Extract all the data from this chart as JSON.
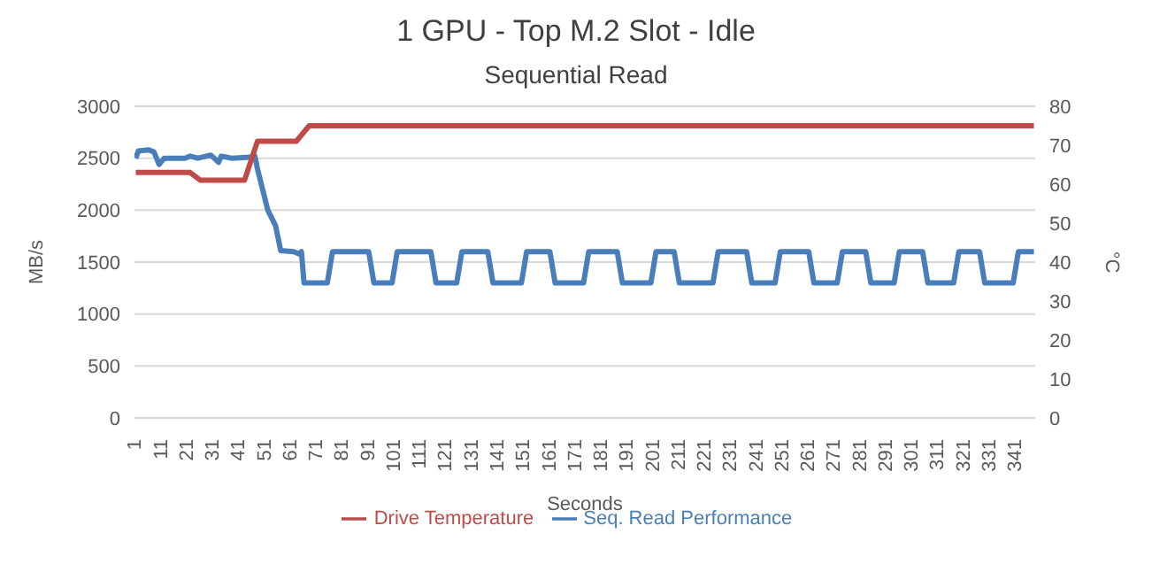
{
  "chart_data": {
    "type": "line",
    "title": "1 GPU - Top M.2 Slot - Idle",
    "subtitle": "Sequential Read",
    "xlabel": "Seconds",
    "ylabel": "MB/s",
    "y2label": "°C",
    "xlim": [
      0.5,
      348.5
    ],
    "xticks": [
      1,
      11,
      21,
      31,
      41,
      51,
      61,
      71,
      81,
      91,
      101,
      111,
      121,
      131,
      141,
      151,
      161,
      171,
      181,
      191,
      201,
      211,
      221,
      231,
      241,
      251,
      261,
      271,
      281,
      291,
      301,
      311,
      321,
      331,
      341
    ],
    "ylim": [
      0,
      3000
    ],
    "yticks": [
      0,
      500,
      1000,
      1500,
      2000,
      2500,
      3000
    ],
    "y2lim": [
      0,
      80
    ],
    "y2ticks": [
      0,
      10,
      20,
      30,
      40,
      50,
      60,
      70,
      80
    ],
    "grid": "y",
    "legend": "bottom",
    "marker": "none",
    "line_style": "solid",
    "series": [
      {
        "name": "Seq. Read Performance",
        "color": "#4a7ebb",
        "x": [
          1,
          2,
          6,
          8,
          10,
          11,
          12,
          20,
          22,
          25,
          30,
          33,
          34,
          38,
          45,
          47,
          48,
          50,
          52,
          53,
          55,
          57,
          62,
          64,
          65,
          66,
          75,
          77,
          91,
          93,
          100,
          102,
          115,
          117,
          125,
          127,
          137,
          139,
          150,
          152,
          161,
          163,
          174,
          176,
          187,
          189,
          200,
          202,
          209,
          211,
          224,
          226,
          237,
          239,
          248,
          250,
          261,
          263,
          272,
          274,
          283,
          285,
          294,
          296,
          305,
          307,
          317,
          319,
          327,
          329,
          340,
          342,
          348
        ],
        "values": [
          2500,
          2570,
          2580,
          2560,
          2440,
          2470,
          2500,
          2500,
          2520,
          2500,
          2530,
          2460,
          2520,
          2500,
          2510,
          2520,
          2400,
          2200,
          2000,
          1950,
          1850,
          1610,
          1600,
          1580,
          1600,
          1300,
          1300,
          1600,
          1600,
          1300,
          1300,
          1600,
          1600,
          1300,
          1300,
          1600,
          1600,
          1300,
          1300,
          1600,
          1600,
          1300,
          1300,
          1600,
          1600,
          1300,
          1300,
          1600,
          1600,
          1300,
          1300,
          1600,
          1600,
          1300,
          1300,
          1600,
          1600,
          1300,
          1300,
          1600,
          1600,
          1300,
          1300,
          1600,
          1600,
          1300,
          1300,
          1600,
          1600,
          1300,
          1300,
          1600,
          1600
        ]
      },
      {
        "name": "Drive Temperature",
        "color": "#be4b48",
        "axis": "y2",
        "x": [
          1,
          22,
          26,
          43,
          48,
          63,
          68,
          348
        ],
        "values": [
          63,
          63,
          61,
          61,
          71,
          71,
          75,
          75
        ]
      }
    ]
  }
}
